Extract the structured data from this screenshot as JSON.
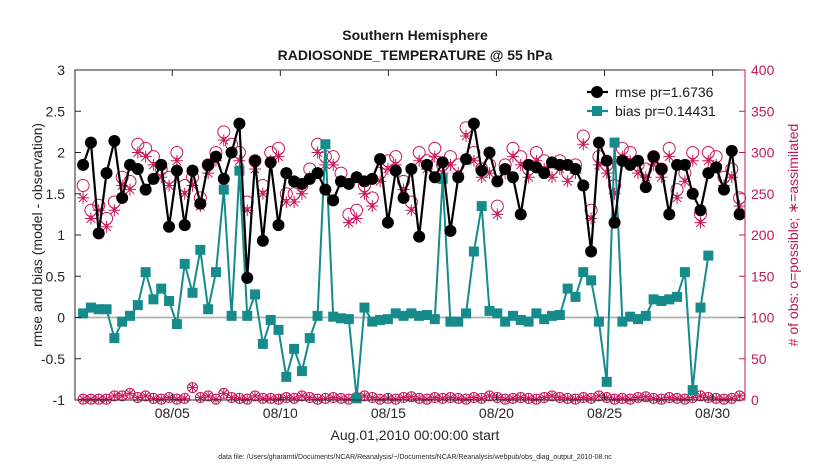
{
  "chart_data": {
    "type": "line",
    "title": "Southern Hemisphere",
    "subtitle": "RADIOSONDE_TEMPERATURE @ 55 hPa",
    "xlabel": "Aug.01,2010 00:00:00 start",
    "ylabel": "rmse and bias (model - observation)",
    "ylabel_right": "# of obs: o=possible; ∗=assimilated",
    "footnote": "data file: /Users/gharamti/Documents/NCAR/Reanalysis/~/Documents/NCAR/Reanalysis/webpub/obs_diag_output_2010-08.nc",
    "xlim": [
      0,
      124
    ],
    "ylim": [
      -1,
      3
    ],
    "ylim_right": [
      0,
      400
    ],
    "x_ticks": [
      {
        "value": 18,
        "label": "08/05"
      },
      {
        "value": 38,
        "label": "08/10"
      },
      {
        "value": 58,
        "label": "08/15"
      },
      {
        "value": 78,
        "label": "08/20"
      },
      {
        "value": 98,
        "label": "08/25"
      },
      {
        "value": 118,
        "label": "08/30"
      }
    ],
    "y_ticks": [
      {
        "value": -1,
        "label": "-1"
      },
      {
        "value": -0.5,
        "label": "-0.5"
      },
      {
        "value": 0,
        "label": "0"
      },
      {
        "value": 0.5,
        "label": "0.5"
      },
      {
        "value": 1,
        "label": "1"
      },
      {
        "value": 1.5,
        "label": "1.5"
      },
      {
        "value": 2,
        "label": "2"
      },
      {
        "value": 2.5,
        "label": "2.5"
      },
      {
        "value": 3,
        "label": "3"
      }
    ],
    "y_ticks_right": [
      {
        "value": 0,
        "label": "0"
      },
      {
        "value": 50,
        "label": "50"
      },
      {
        "value": 100,
        "label": "100"
      },
      {
        "value": 150,
        "label": "150"
      },
      {
        "value": 200,
        "label": "200"
      },
      {
        "value": 250,
        "label": "250"
      },
      {
        "value": 300,
        "label": "300"
      },
      {
        "value": 350,
        "label": "350"
      },
      {
        "value": 400,
        "label": "400"
      }
    ],
    "series": [
      {
        "name": "rmse",
        "label": "rmse pr=1.6736",
        "color": "#000000",
        "marker": "circle",
        "values": [
          1.85,
          2.12,
          1.02,
          1.75,
          2.14,
          1.45,
          1.85,
          1.8,
          1.55,
          1.68,
          1.85,
          1.1,
          1.78,
          1.12,
          1.78,
          1.38,
          1.85,
          1.95,
          1.68,
          2.0,
          2.35,
          0.48,
          1.9,
          0.93,
          1.88,
          1.12,
          1.75,
          1.65,
          1.62,
          1.68,
          1.75,
          1.55,
          1.42,
          1.65,
          1.62,
          1.7,
          1.65,
          1.68,
          1.92,
          1.15,
          1.78,
          1.45,
          1.8,
          0.98,
          1.85,
          1.7,
          1.88,
          1.05,
          1.7,
          1.92,
          2.35,
          1.78,
          2.0,
          1.65,
          1.8,
          1.7,
          1.25,
          1.85,
          1.82,
          1.75,
          1.88,
          1.85,
          1.85,
          1.8,
          1.6,
          0.8,
          2.12,
          1.9,
          1.15,
          1.9,
          1.85,
          1.9,
          1.58,
          1.95,
          1.8,
          1.25,
          1.85,
          1.85,
          1.5,
          1.3,
          1.75,
          1.82,
          1.55,
          2.02,
          1.25
        ]
      },
      {
        "name": "bias",
        "label": "bias pr=0.14431",
        "color": "#168b8b",
        "marker": "square",
        "values": [
          0.05,
          0.12,
          0.1,
          0.1,
          -0.25,
          -0.05,
          0.02,
          0.15,
          0.55,
          0.22,
          0.35,
          0.2,
          -0.08,
          0.65,
          0.3,
          0.82,
          0.1,
          0.55,
          1.55,
          0.02,
          1.78,
          0.02,
          0.28,
          -0.32,
          -0.03,
          -0.15,
          -0.72,
          -0.38,
          -0.65,
          -0.25,
          0.02,
          2.1,
          0.01,
          -0.01,
          -0.02,
          -0.98,
          0.12,
          -0.05,
          -0.03,
          -0.02,
          0.05,
          0.02,
          0.05,
          0.02,
          0.03,
          -0.02,
          1.68,
          -0.05,
          -0.05,
          0.05,
          0.8,
          1.35,
          0.08,
          0.05,
          -0.05,
          0.02,
          -0.03,
          -0.05,
          0.05,
          -0.02,
          0.02,
          0.03,
          0.35,
          0.25,
          0.55,
          0.45,
          -0.05,
          -0.78,
          2.12,
          -0.05,
          0.01,
          -0.02,
          0.02,
          0.22,
          0.2,
          0.22,
          0.25,
          0.55,
          -0.88,
          0.12,
          0.75
        ]
      }
    ],
    "obs_possible": {
      "name": "possible",
      "color": "#c8185c",
      "marker": "open-circle",
      "values": [
        260,
        230,
        236,
        220,
        240,
        270,
        265,
        310,
        305,
        295,
        280,
        270,
        300,
        260,
        270,
        245,
        285,
        300,
        325,
        310,
        300,
        240,
        290,
        260,
        300,
        305,
        250,
        250,
        260,
        280,
        310,
        295,
        295,
        275,
        225,
        230,
        260,
        245,
        275,
        290,
        295,
        265,
        240,
        300,
        290,
        305,
        285,
        295,
        285,
        330,
        300,
        280,
        285,
        235,
        285,
        305,
        295,
        280,
        300,
        290,
        280,
        290,
        275,
        285,
        320,
        230,
        295,
        285,
        260,
        305,
        300,
        285,
        280,
        295,
        280,
        305,
        255,
        275,
        300,
        225,
        300,
        295,
        270,
        280,
        245
      ]
    },
    "obs_assimilated": {
      "name": "assimilated",
      "color": "#c8185c",
      "marker": "star",
      "values": [
        245,
        220,
        230,
        210,
        230,
        260,
        255,
        300,
        295,
        285,
        270,
        260,
        290,
        250,
        260,
        235,
        275,
        290,
        315,
        300,
        290,
        230,
        280,
        250,
        290,
        295,
        240,
        240,
        250,
        270,
        300,
        285,
        285,
        265,
        215,
        220,
        250,
        235,
        265,
        280,
        285,
        255,
        230,
        290,
        280,
        295,
        275,
        285,
        275,
        320,
        290,
        270,
        275,
        225,
        275,
        295,
        285,
        270,
        290,
        280,
        270,
        280,
        265,
        275,
        310,
        220,
        285,
        275,
        250,
        295,
        290,
        275,
        270,
        285,
        270,
        295,
        245,
        265,
        290,
        215,
        290,
        285,
        260,
        270,
        235
      ]
    },
    "obs_bottom_series": {
      "name": "bottom count",
      "color": "#c8185c",
      "values": [
        1,
        1,
        1,
        1,
        5,
        5,
        8,
        3,
        5,
        2,
        1,
        3,
        1,
        2,
        15,
        3,
        5,
        1,
        8,
        3,
        2,
        1,
        5,
        2,
        2,
        1,
        3,
        2,
        5,
        3,
        1,
        2,
        3,
        2,
        1,
        3,
        5,
        3,
        1,
        2,
        1,
        3,
        4,
        2,
        1,
        3,
        2,
        3,
        2,
        1,
        3,
        2,
        5,
        3,
        1,
        2,
        3,
        2,
        1,
        3,
        5,
        3,
        2,
        1,
        3,
        2,
        5,
        3,
        1,
        2,
        1,
        3,
        4,
        2,
        1,
        3,
        2,
        1,
        3,
        5,
        3,
        2,
        1,
        2,
        5
      ]
    },
    "legend": {
      "position": "top-right"
    }
  }
}
